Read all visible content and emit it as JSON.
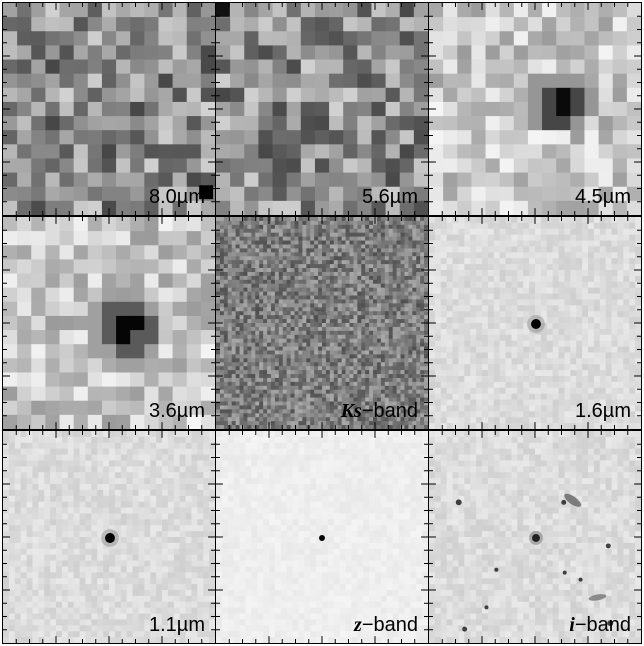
{
  "panels": [
    {
      "label_main": "8.0µm",
      "label_prefix": "",
      "texture": "pixel-noise",
      "source": "none"
    },
    {
      "label_main": "5.6µm",
      "label_prefix": "",
      "texture": "pixel-noise",
      "source": "none"
    },
    {
      "label_main": "4.5µm",
      "label_prefix": "",
      "texture": "pixel-noise-light",
      "source": "dark-compact"
    },
    {
      "label_main": "3.6µm",
      "label_prefix": "",
      "texture": "pixel-noise-light",
      "source": "dark-bright"
    },
    {
      "label_main": "−band",
      "label_prefix": "Ks",
      "texture": "fine-noise-dark",
      "source": "faint"
    },
    {
      "label_main": "1.6µm",
      "label_prefix": "",
      "texture": "smooth-light",
      "source": "point"
    },
    {
      "label_main": "1.1µm",
      "label_prefix": "",
      "texture": "smooth-light",
      "source": "point"
    },
    {
      "label_main": "−band",
      "label_prefix": "z",
      "texture": "very-light",
      "source": "small-point"
    },
    {
      "label_main": "−band",
      "label_prefix": "i",
      "texture": "smooth-light",
      "source": "point-with-field"
    }
  ],
  "colors": {
    "background": "#ffffff",
    "frame": "#000000"
  }
}
